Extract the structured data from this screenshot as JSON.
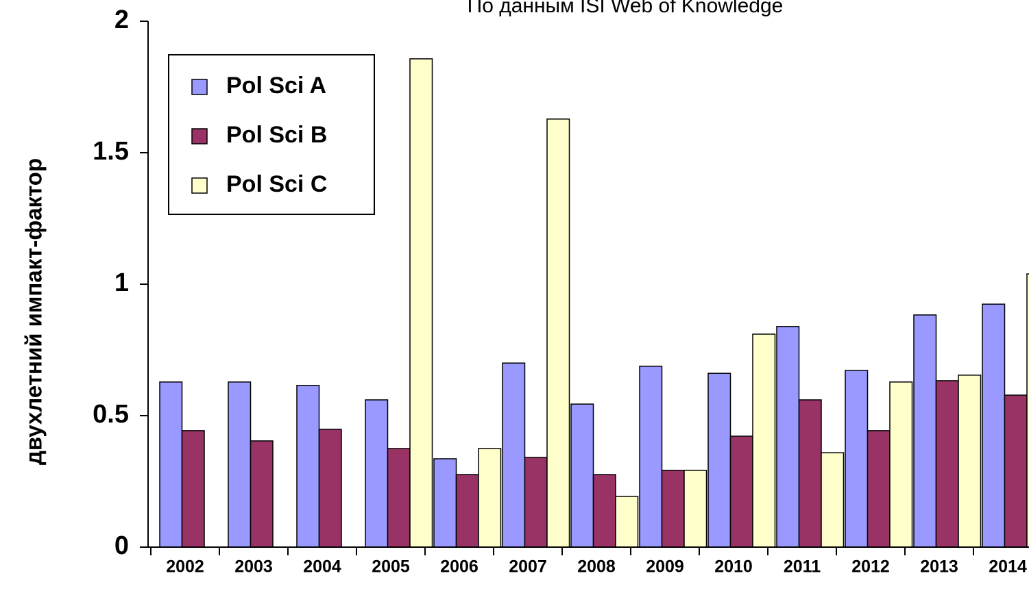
{
  "chart_data": {
    "type": "bar",
    "title": "По данным ISI Web of Knowledge",
    "y_label": "двухлетний импакт-фактор",
    "categories": [
      "2002",
      "2003",
      "2004",
      "2005",
      "2006",
      "2007",
      "2008",
      "2009",
      "2010",
      "2011",
      "2012",
      "2013",
      "2014"
    ],
    "series": [
      {
        "name": "Pol Sci A",
        "color": "#9999ff",
        "values": [
          0.628,
          0.628,
          0.615,
          0.56,
          0.336,
          0.7,
          0.544,
          0.688,
          0.661,
          0.839,
          0.672,
          0.883,
          0.924
        ]
      },
      {
        "name": "Pol Sci B",
        "color": "#993366",
        "values": [
          0.443,
          0.404,
          0.448,
          0.375,
          0.276,
          0.341,
          0.276,
          0.292,
          0.422,
          0.56,
          0.443,
          0.633,
          0.578
        ]
      },
      {
        "name": "Pol Sci C",
        "color": "#ffffcc",
        "values": [
          null,
          null,
          null,
          1.857,
          0.375,
          1.628,
          0.193,
          0.292,
          0.81,
          0.359,
          0.628,
          0.654,
          1.039
        ]
      }
    ],
    "ylim": [
      0,
      2
    ],
    "yticks": [
      0,
      0.5,
      1,
      1.5,
      2
    ],
    "grid": false,
    "legend": "upper left"
  }
}
